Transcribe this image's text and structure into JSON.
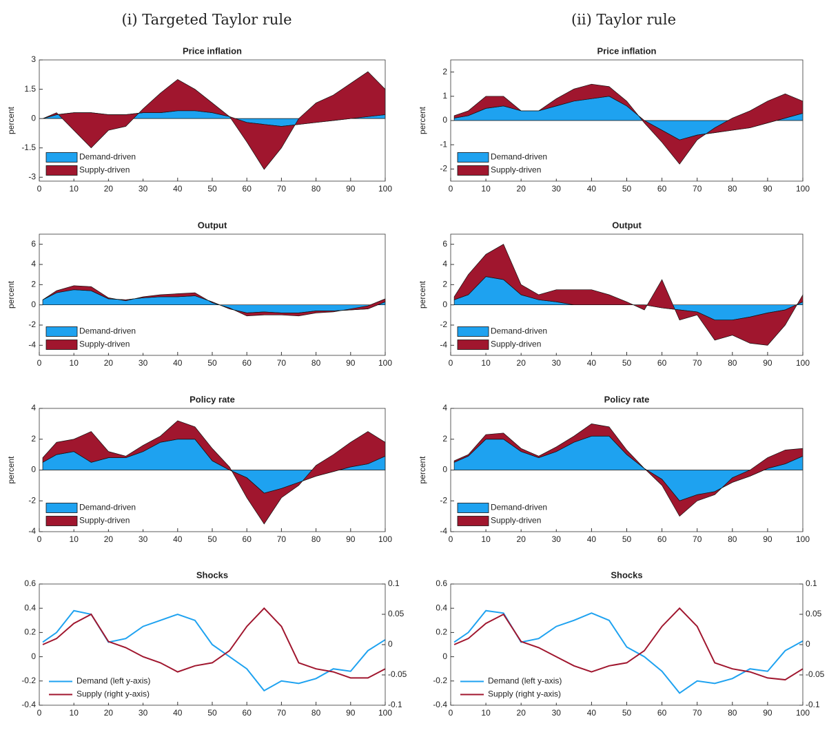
{
  "columns": [
    "(i) Targeted Taylor rule",
    "(ii) Taylor rule"
  ],
  "chart_data": [
    {
      "type": "area",
      "title": "Price inflation",
      "ylabel": "percent",
      "legend": "lower left",
      "x": [
        1,
        5,
        10,
        15,
        20,
        25,
        30,
        35,
        40,
        45,
        50,
        55,
        60,
        65,
        70,
        75,
        80,
        85,
        90,
        95,
        100
      ],
      "xlim": [
        0,
        100
      ],
      "xticks": [
        0,
        10,
        20,
        30,
        40,
        50,
        60,
        70,
        80,
        90,
        100
      ],
      "ylim": [
        -3.2,
        3
      ],
      "yticks": [
        -3,
        -1.5,
        0,
        1.5,
        3
      ],
      "series": [
        {
          "name": "Demand-driven",
          "color": "#1ea2f0",
          "values": [
            0,
            0.2,
            0.3,
            0.3,
            0.2,
            0.2,
            0.3,
            0.3,
            0.4,
            0.4,
            0.3,
            0.1,
            -0.2,
            -0.3,
            -0.4,
            -0.3,
            -0.2,
            -0.1,
            0,
            0.1,
            0.2
          ]
        },
        {
          "name": "Supply-driven",
          "color": "#a0162e",
          "values": [
            0,
            0.1,
            -0.9,
            -1.8,
            -0.8,
            -0.6,
            0.2,
            1.0,
            1.6,
            1.1,
            0.5,
            0,
            -1.0,
            -2.3,
            -1.1,
            0.3,
            1.0,
            1.3,
            1.8,
            2.3,
            1.3
          ]
        }
      ]
    },
    {
      "type": "area",
      "title": "Price inflation",
      "ylabel": "percent",
      "legend": "lower left",
      "x": [
        1,
        5,
        10,
        15,
        20,
        25,
        30,
        35,
        40,
        45,
        50,
        55,
        60,
        65,
        70,
        75,
        80,
        85,
        90,
        95,
        100
      ],
      "xlim": [
        0,
        100
      ],
      "xticks": [
        0,
        10,
        20,
        30,
        40,
        50,
        60,
        70,
        80,
        90,
        100
      ],
      "ylim": [
        -2.5,
        2.5
      ],
      "yticks": [
        -2,
        -1,
        0,
        1,
        2
      ],
      "series": [
        {
          "name": "Demand-driven",
          "color": "#1ea2f0",
          "values": [
            0.1,
            0.2,
            0.5,
            0.6,
            0.4,
            0.4,
            0.6,
            0.8,
            0.9,
            1.0,
            0.6,
            0,
            -0.4,
            -0.8,
            -0.6,
            -0.5,
            -0.4,
            -0.3,
            -0.1,
            0.1,
            0.3
          ]
        },
        {
          "name": "Supply-driven",
          "color": "#a0162e",
          "values": [
            0.1,
            0.2,
            0.5,
            0.4,
            0,
            0,
            0.3,
            0.5,
            0.6,
            0.4,
            0.2,
            -0.1,
            -0.5,
            -1.0,
            -0.2,
            0.2,
            0.5,
            0.7,
            0.9,
            1.0,
            0.5
          ]
        }
      ]
    },
    {
      "type": "area",
      "title": "Output",
      "ylabel": "percent",
      "legend": "lower left",
      "x": [
        1,
        5,
        10,
        15,
        20,
        25,
        30,
        35,
        40,
        45,
        50,
        55,
        60,
        65,
        70,
        75,
        80,
        85,
        90,
        95,
        100
      ],
      "xlim": [
        0,
        100
      ],
      "xticks": [
        0,
        10,
        20,
        30,
        40,
        50,
        60,
        70,
        80,
        90,
        100
      ],
      "ylim": [
        -5,
        7
      ],
      "yticks": [
        -4,
        -2,
        0,
        2,
        4,
        6
      ],
      "series": [
        {
          "name": "Demand-driven",
          "color": "#1ea2f0",
          "values": [
            0.5,
            1.2,
            1.5,
            1.4,
            0.6,
            0.5,
            0.7,
            0.8,
            0.8,
            0.9,
            0.3,
            -0.4,
            -0.8,
            -0.7,
            -0.8,
            -0.8,
            -0.6,
            -0.6,
            -0.5,
            -0.4,
            0.3
          ]
        },
        {
          "name": "Supply-driven",
          "color": "#a0162e",
          "values": [
            0,
            0.2,
            0.4,
            0.4,
            0.1,
            -0.1,
            0.1,
            0.2,
            0.3,
            0.3,
            -0.1,
            0.1,
            -0.3,
            -0.3,
            -0.2,
            -0.3,
            -0.2,
            -0.1,
            0.1,
            0.3,
            0.3
          ]
        }
      ]
    },
    {
      "type": "area",
      "title": "Output",
      "ylabel": "percent",
      "legend": "lower left",
      "x": [
        1,
        5,
        10,
        15,
        20,
        25,
        30,
        35,
        40,
        45,
        50,
        55,
        60,
        65,
        70,
        75,
        80,
        85,
        90,
        95,
        100
      ],
      "xlim": [
        0,
        100
      ],
      "xticks": [
        0,
        10,
        20,
        30,
        40,
        50,
        60,
        70,
        80,
        90,
        100
      ],
      "ylim": [
        -5,
        7
      ],
      "yticks": [
        -4,
        -2,
        0,
        2,
        4,
        6
      ],
      "series": [
        {
          "name": "Demand-driven",
          "color": "#1ea2f0",
          "values": [
            0.5,
            1.0,
            2.8,
            2.5,
            1.0,
            0.5,
            0.3,
            0,
            0,
            0,
            0,
            0,
            -0.3,
            -0.5,
            -0.7,
            -1.5,
            -1.5,
            -1.2,
            -0.8,
            -0.5,
            0.3
          ]
        },
        {
          "name": "Supply-driven",
          "color": "#a0162e",
          "values": [
            0.3,
            2.0,
            2.2,
            3.5,
            1.0,
            0.5,
            1.2,
            1.5,
            1.5,
            1.0,
            0.3,
            -0.5,
            2.8,
            -1.0,
            -0.3,
            -2.0,
            -1.5,
            -2.6,
            -3.2,
            -1.5,
            0.7
          ]
        }
      ]
    },
    {
      "type": "area",
      "title": "Policy rate",
      "ylabel": "percent",
      "legend": "lower left",
      "x": [
        1,
        5,
        10,
        15,
        20,
        25,
        30,
        35,
        40,
        45,
        50,
        55,
        60,
        65,
        70,
        75,
        80,
        85,
        90,
        95,
        100
      ],
      "xlim": [
        0,
        100
      ],
      "xticks": [
        0,
        10,
        20,
        30,
        40,
        50,
        60,
        70,
        80,
        90,
        100
      ],
      "ylim": [
        -4,
        4
      ],
      "yticks": [
        -4,
        -2,
        0,
        2,
        4
      ],
      "series": [
        {
          "name": "Demand-driven",
          "color": "#1ea2f0",
          "values": [
            0.5,
            1.0,
            1.2,
            0.5,
            0.8,
            0.8,
            1.2,
            1.8,
            2.0,
            2.0,
            0.6,
            0,
            -0.5,
            -1.5,
            -1.2,
            -0.8,
            -0.4,
            -0.1,
            0.2,
            0.4,
            0.9
          ]
        },
        {
          "name": "Supply-driven",
          "color": "#a0162e",
          "values": [
            0.3,
            0.8,
            0.8,
            2.0,
            0.4,
            0.1,
            0.4,
            0.4,
            1.2,
            0.8,
            0.8,
            0.2,
            -1.3,
            -2.0,
            -0.6,
            -0.2,
            0.7,
            1.1,
            1.6,
            2.1,
            0.9
          ]
        }
      ]
    },
    {
      "type": "area",
      "title": "Policy rate",
      "ylabel": "percent",
      "legend": "lower left",
      "x": [
        1,
        5,
        10,
        15,
        20,
        25,
        30,
        35,
        40,
        45,
        50,
        55,
        60,
        65,
        70,
        75,
        80,
        85,
        90,
        95,
        100
      ],
      "xlim": [
        0,
        100
      ],
      "xticks": [
        0,
        10,
        20,
        30,
        40,
        50,
        60,
        70,
        80,
        90,
        100
      ],
      "ylim": [
        -4,
        4
      ],
      "yticks": [
        -4,
        -2,
        0,
        2,
        4
      ],
      "series": [
        {
          "name": "Demand-driven",
          "color": "#1ea2f0",
          "values": [
            0.5,
            0.9,
            2.0,
            2.0,
            1.2,
            0.8,
            1.2,
            1.8,
            2.2,
            2.2,
            1.0,
            0.1,
            -0.6,
            -2.0,
            -1.6,
            -1.4,
            -0.8,
            -0.4,
            0.1,
            0.4,
            0.9
          ]
        },
        {
          "name": "Supply-driven",
          "color": "#a0162e",
          "values": [
            0.1,
            0.1,
            0.3,
            0.4,
            0.2,
            0.1,
            0.3,
            0.4,
            0.8,
            0.6,
            0.3,
            0,
            -0.4,
            -1.0,
            -0.4,
            -0.2,
            0.3,
            0.4,
            0.7,
            0.9,
            0.5
          ]
        }
      ]
    },
    {
      "type": "line",
      "title": "Shocks",
      "legend": "lower left",
      "x": [
        1,
        5,
        10,
        15,
        20,
        25,
        30,
        35,
        40,
        45,
        50,
        55,
        60,
        65,
        70,
        75,
        80,
        85,
        90,
        95,
        100
      ],
      "xlim": [
        0,
        100
      ],
      "xticks": [
        0,
        10,
        20,
        30,
        40,
        50,
        60,
        70,
        80,
        90,
        100
      ],
      "ylim": [
        -0.4,
        0.6
      ],
      "yticks": [
        -0.4,
        -0.2,
        0,
        0.2,
        0.4,
        0.6
      ],
      "y2lim": [
        -0.1,
        0.1
      ],
      "y2ticks": [
        -0.1,
        -0.05,
        0,
        0.05,
        0.1
      ],
      "series": [
        {
          "name": "Demand (left y-axis)",
          "color": "#1ea2f0",
          "values": [
            0.12,
            0.2,
            0.38,
            0.35,
            0.12,
            0.15,
            0.25,
            0.3,
            0.35,
            0.3,
            0.1,
            0,
            -0.1,
            -0.28,
            -0.2,
            -0.22,
            -0.18,
            -0.1,
            -0.12,
            0.05,
            0.14
          ]
        },
        {
          "name": "Supply (right y-axis)",
          "color": "#a0162e",
          "axis": "y2",
          "values": [
            0,
            0.01,
            0.035,
            0.05,
            0.005,
            -0.005,
            -0.02,
            -0.03,
            -0.045,
            -0.035,
            -0.03,
            -0.01,
            0.03,
            0.06,
            0.03,
            -0.03,
            -0.04,
            -0.045,
            -0.055,
            -0.055,
            -0.04
          ]
        }
      ]
    },
    {
      "type": "line",
      "title": "Shocks",
      "legend": "lower left",
      "x": [
        1,
        5,
        10,
        15,
        20,
        25,
        30,
        35,
        40,
        45,
        50,
        55,
        60,
        65,
        70,
        75,
        80,
        85,
        90,
        95,
        100
      ],
      "xlim": [
        0,
        100
      ],
      "xticks": [
        0,
        10,
        20,
        30,
        40,
        50,
        60,
        70,
        80,
        90,
        100
      ],
      "ylim": [
        -0.4,
        0.6
      ],
      "yticks": [
        -0.4,
        -0.2,
        0,
        0.2,
        0.4,
        0.6
      ],
      "y2lim": [
        -0.1,
        0.1
      ],
      "y2ticks": [
        -0.1,
        -0.05,
        0,
        0.05,
        0.1
      ],
      "series": [
        {
          "name": "Demand (left y-axis)",
          "color": "#1ea2f0",
          "values": [
            0.12,
            0.2,
            0.38,
            0.36,
            0.12,
            0.15,
            0.25,
            0.3,
            0.36,
            0.3,
            0.08,
            0,
            -0.12,
            -0.3,
            -0.2,
            -0.22,
            -0.18,
            -0.1,
            -0.12,
            0.05,
            0.13
          ]
        },
        {
          "name": "Supply (right y-axis)",
          "color": "#a0162e",
          "axis": "y2",
          "values": [
            0,
            0.01,
            0.035,
            0.05,
            0.005,
            -0.005,
            -0.02,
            -0.035,
            -0.045,
            -0.035,
            -0.03,
            -0.01,
            0.03,
            0.06,
            0.03,
            -0.03,
            -0.04,
            -0.045,
            -0.055,
            -0.058,
            -0.04
          ]
        }
      ]
    }
  ]
}
